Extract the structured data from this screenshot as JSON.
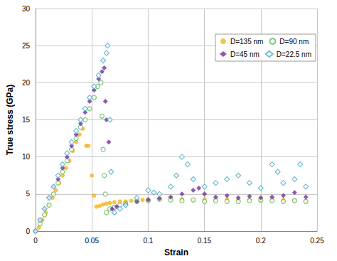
{
  "chart_data": {
    "type": "scatter",
    "x_label": "Strain",
    "y_label": "True stress (GPa)",
    "xlim": [
      0,
      0.25
    ],
    "xticks": [
      0,
      0.05,
      0.1,
      0.15,
      0.2,
      0.25
    ],
    "ylim": [
      0,
      30
    ],
    "yticks": [
      0,
      5,
      10,
      15,
      20,
      25,
      30
    ],
    "grid": true,
    "legend": "upper right",
    "series": [
      {
        "name": "D=135 nm",
        "color": "#f5b31a",
        "marker": "circle",
        "x": [
          0,
          0.003,
          0.006,
          0.009,
          0.012,
          0.015,
          0.018,
          0.021,
          0.024,
          0.027,
          0.03,
          0.033,
          0.036,
          0.039,
          0.042,
          0.045,
          0.047,
          0.05,
          0.052,
          0.054,
          0.057,
          0.06,
          0.063,
          0.066,
          0.07,
          0.075,
          0.08,
          0.085,
          0.09,
          0.095,
          0.1,
          0.11,
          0.12,
          0.13,
          0.14,
          0.15,
          0.16,
          0.17,
          0.18,
          0.19,
          0.2,
          0.21,
          0.22,
          0.23,
          0.24
        ],
        "values": [
          0,
          0.5,
          1.5,
          2.5,
          3.5,
          4.5,
          5.5,
          6.5,
          7.5,
          8.5,
          9.5,
          10.8,
          12,
          13,
          13.8,
          11.5,
          11.5,
          7.5,
          4.8,
          3.3,
          3.4,
          3.6,
          3.7,
          3.8,
          3.9,
          4,
          4,
          4.1,
          4.2,
          4.2,
          4.3,
          4.3,
          4.4,
          4.3,
          4.2,
          4.3,
          4.2,
          4.3,
          4.2,
          4.2,
          4.1,
          4.2,
          4.2,
          4.1,
          4.1
        ]
      },
      {
        "name": "D=90 nm",
        "color": "#5cb85c",
        "marker": "open_circle",
        "x": [
          0,
          0.004,
          0.008,
          0.012,
          0.016,
          0.02,
          0.024,
          0.028,
          0.032,
          0.036,
          0.04,
          0.044,
          0.048,
          0.052,
          0.055,
          0.058,
          0.059,
          0.06,
          0.061,
          0.062,
          0.063,
          0.066,
          0.07,
          0.075,
          0.08,
          0.09,
          0.1,
          0.11,
          0.12,
          0.13,
          0.14,
          0.15,
          0.16,
          0.17,
          0.18,
          0.19,
          0.2,
          0.21,
          0.22,
          0.23,
          0.24
        ],
        "values": [
          0,
          1,
          2.2,
          3.5,
          5,
          6.5,
          8,
          9.5,
          11,
          12.5,
          14,
          15,
          16.5,
          18,
          19.5,
          20,
          15.5,
          11,
          7.5,
          5,
          2.5,
          3,
          3.2,
          3.5,
          3.7,
          4,
          4.1,
          4.3,
          4.2,
          4.1,
          4.2,
          4,
          4.1,
          4,
          4,
          4.1,
          4.2,
          4.1,
          4,
          4.1,
          4
        ]
      },
      {
        "name": "D=45 nm",
        "color": "#7030a0",
        "marker": "diamond",
        "x": [
          0,
          0.004,
          0.008,
          0.012,
          0.016,
          0.02,
          0.024,
          0.028,
          0.032,
          0.036,
          0.04,
          0.044,
          0.048,
          0.052,
          0.056,
          0.059,
          0.061,
          0.062,
          0.063,
          0.065,
          0.068,
          0.072,
          0.08,
          0.09,
          0.1,
          0.11,
          0.12,
          0.13,
          0.14,
          0.145,
          0.15,
          0.16,
          0.17,
          0.18,
          0.19,
          0.2,
          0.21,
          0.22,
          0.23,
          0.24
        ],
        "values": [
          0,
          1.5,
          3,
          4.5,
          6,
          7,
          8.5,
          10,
          11.5,
          13,
          14.5,
          16,
          17.5,
          19,
          20.5,
          21.5,
          22,
          17.5,
          15,
          12,
          3,
          3.3,
          3.6,
          4,
          4.2,
          4.4,
          4.6,
          5,
          5.5,
          5.8,
          5,
          4.6,
          4.8,
          4.5,
          4.7,
          4.5,
          4.6,
          4.8,
          5.2,
          4.6
        ]
      },
      {
        "name": "D=22.5 nm",
        "color": "#4bacc6",
        "marker": "open_diamond",
        "x": [
          0,
          0.004,
          0.008,
          0.012,
          0.016,
          0.02,
          0.024,
          0.028,
          0.032,
          0.036,
          0.04,
          0.044,
          0.048,
          0.052,
          0.056,
          0.06,
          0.063,
          0.064,
          0.066,
          0.067,
          0.07,
          0.075,
          0.08,
          0.09,
          0.1,
          0.105,
          0.11,
          0.12,
          0.125,
          0.13,
          0.135,
          0.14,
          0.15,
          0.16,
          0.17,
          0.18,
          0.19,
          0.2,
          0.21,
          0.215,
          0.22,
          0.23,
          0.235,
          0.24
        ],
        "values": [
          0,
          1.5,
          3,
          4.5,
          6,
          7.5,
          9,
          10.5,
          12,
          13.5,
          15,
          16.5,
          18,
          19.5,
          21,
          23,
          24,
          25,
          15,
          8,
          2.5,
          3,
          3.5,
          4.5,
          5.5,
          5.2,
          5,
          6,
          7.5,
          10,
          9,
          7,
          6,
          6.5,
          7,
          7.5,
          6.5,
          5.8,
          9,
          8,
          6.5,
          7,
          9,
          6
        ]
      }
    ]
  }
}
